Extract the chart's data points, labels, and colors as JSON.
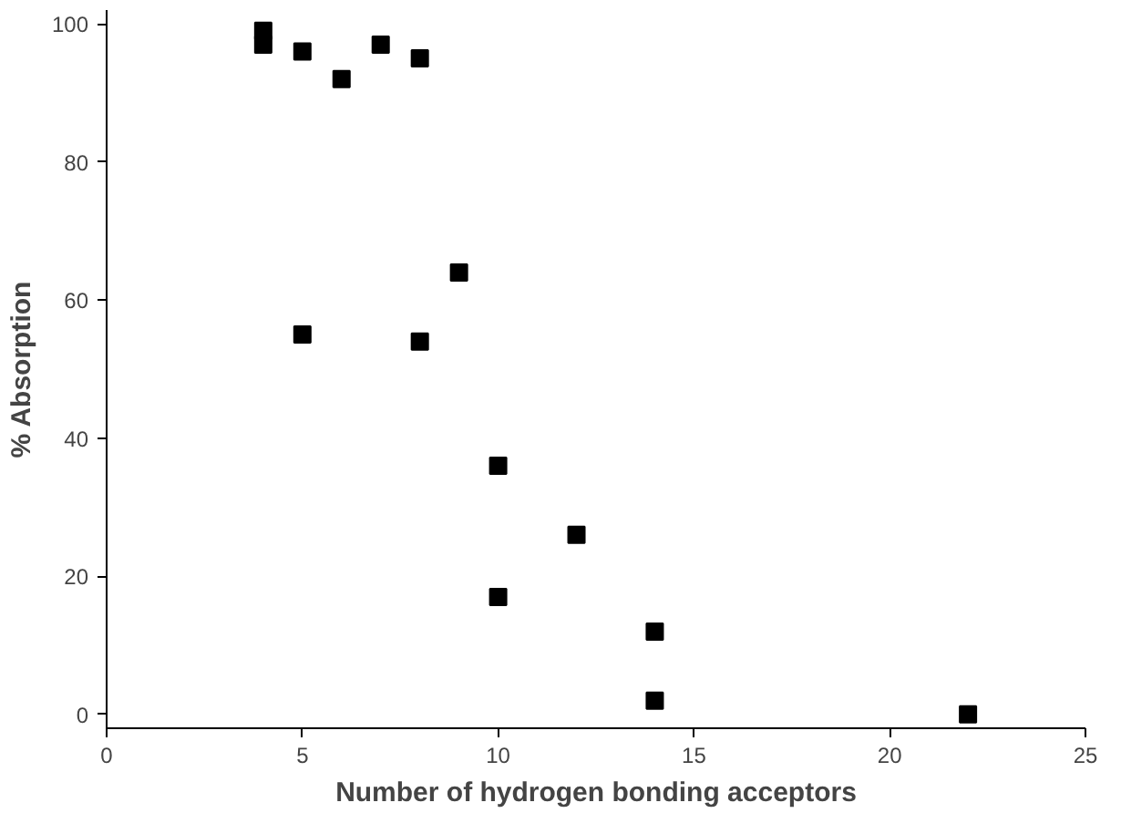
{
  "chart_data": {
    "type": "scatter",
    "xlabel": "Number of hydrogen bonding acceptors",
    "ylabel": "% Absorption",
    "x": [
      4,
      4,
      5,
      6,
      7,
      8,
      9,
      5,
      8,
      10,
      12,
      10,
      14,
      14,
      22
    ],
    "values": [
      99,
      97,
      96,
      92,
      97,
      95,
      64,
      55,
      54,
      36,
      26,
      17,
      12,
      2,
      0
    ],
    "color": "#000000",
    "marker": "square",
    "xlim": [
      0,
      25
    ],
    "ylim": [
      -2,
      102
    ],
    "xticks": [
      0,
      5,
      10,
      15,
      20,
      25
    ],
    "yticks": [
      0,
      20,
      40,
      60,
      80,
      100
    ],
    "grid": false
  }
}
